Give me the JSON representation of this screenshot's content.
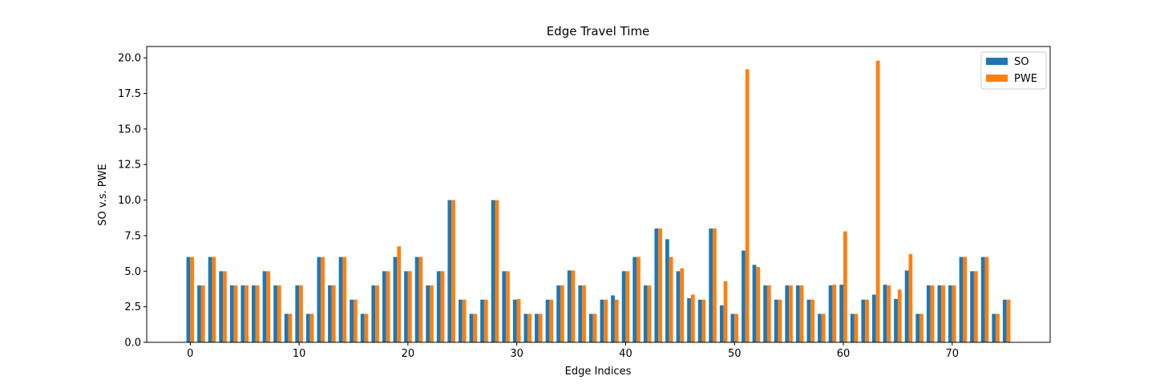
{
  "chart_data": {
    "type": "bar",
    "title": "Edge Travel Time",
    "x_label": "Edge Indices",
    "y_label": "SO v.s. PWE",
    "x": [
      0,
      1,
      2,
      3,
      4,
      5,
      6,
      7,
      8,
      9,
      10,
      11,
      12,
      13,
      14,
      15,
      16,
      17,
      18,
      19,
      20,
      21,
      22,
      23,
      24,
      25,
      26,
      27,
      28,
      29,
      30,
      31,
      32,
      33,
      34,
      35,
      36,
      37,
      38,
      39,
      40,
      41,
      42,
      43,
      44,
      45,
      46,
      47,
      48,
      49,
      50,
      51,
      52,
      53,
      54,
      55,
      56,
      57,
      58,
      59,
      60,
      61,
      62,
      63,
      64,
      65,
      66,
      67,
      68,
      69,
      70,
      71,
      72,
      73,
      74,
      75
    ],
    "series": [
      {
        "name": "SO",
        "color": "#1f77b4",
        "values": [
          6,
          4,
          6,
          5,
          4,
          4,
          4,
          5,
          4,
          2,
          4,
          2,
          6,
          4,
          6,
          3,
          2,
          4,
          5,
          6,
          5,
          6,
          4,
          5,
          10,
          3,
          2,
          3,
          10,
          5,
          3,
          2,
          2,
          3,
          4,
          5.05,
          4,
          2,
          3,
          3.3,
          5,
          6,
          4,
          8,
          7.25,
          5,
          3.1,
          3,
          8,
          2.6,
          2,
          6.45,
          5.45,
          4,
          3,
          4,
          4,
          3,
          2,
          4,
          4.05,
          2,
          3,
          3.35,
          4.05,
          3.05,
          5.05,
          2,
          4,
          4,
          4,
          6,
          5,
          6,
          2,
          3
        ]
      },
      {
        "name": "PWE",
        "color": "#ff7f0e",
        "values": [
          6,
          4,
          6,
          5,
          4,
          4,
          4,
          5,
          4,
          2,
          4,
          2,
          6,
          4,
          6,
          3,
          2,
          4,
          5,
          6.75,
          5,
          6,
          4,
          5,
          10,
          3,
          2,
          3,
          10,
          5,
          3.05,
          2,
          2,
          3,
          4,
          5.05,
          4,
          2,
          3,
          3,
          5,
          6,
          4,
          8,
          6,
          5.2,
          3.35,
          3,
          8,
          4.3,
          2,
          19.2,
          5.3,
          4,
          3,
          4,
          4,
          3,
          2,
          4.05,
          7.8,
          2,
          3,
          19.8,
          4,
          3.7,
          6.2,
          2,
          4,
          4,
          4,
          6,
          5,
          6,
          2,
          3
        ]
      }
    ],
    "xlim": [
      -4,
      79
    ],
    "xticks": [
      0,
      10,
      20,
      30,
      40,
      50,
      60,
      70
    ],
    "ylim": [
      0,
      20.8
    ],
    "yticks": [
      {
        "value": 0,
        "label": "0.0"
      },
      {
        "value": 2.5,
        "label": "2.5"
      },
      {
        "value": 5,
        "label": "5.0"
      },
      {
        "value": 7.5,
        "label": "7.5"
      },
      {
        "value": 10,
        "label": "10.0"
      },
      {
        "value": 12.5,
        "label": "12.5"
      },
      {
        "value": 15,
        "label": "15.0"
      },
      {
        "value": 17.5,
        "label": "17.5"
      },
      {
        "value": 20,
        "label": "20.0"
      }
    ],
    "legend": "upper right"
  }
}
